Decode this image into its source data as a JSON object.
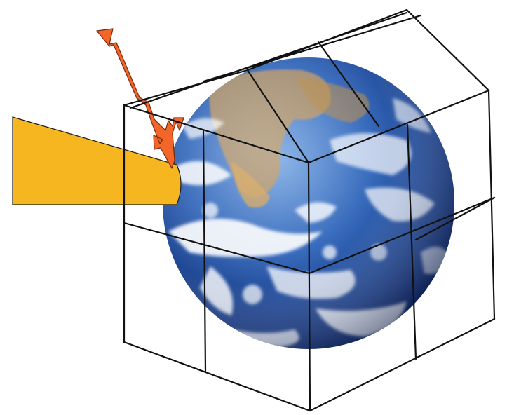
{
  "colors": {
    "background": "#ffffff",
    "ocean_light": "#6f9fdc",
    "ocean_mid": "#2f62b6",
    "ocean_dark": "#0c2a6b",
    "cloud": "#ffffff",
    "land": "#c79a58",
    "sun_beam": "#f5b620",
    "arrow": "#f2662a",
    "frame_line": "#111111"
  },
  "icons": {
    "earth": "earth-globe-icon",
    "sunlight": "sunlight-beam-icon",
    "arrows": "reflected-radiation-arrow-icon",
    "frame": "greenhouse-frame-icon"
  }
}
